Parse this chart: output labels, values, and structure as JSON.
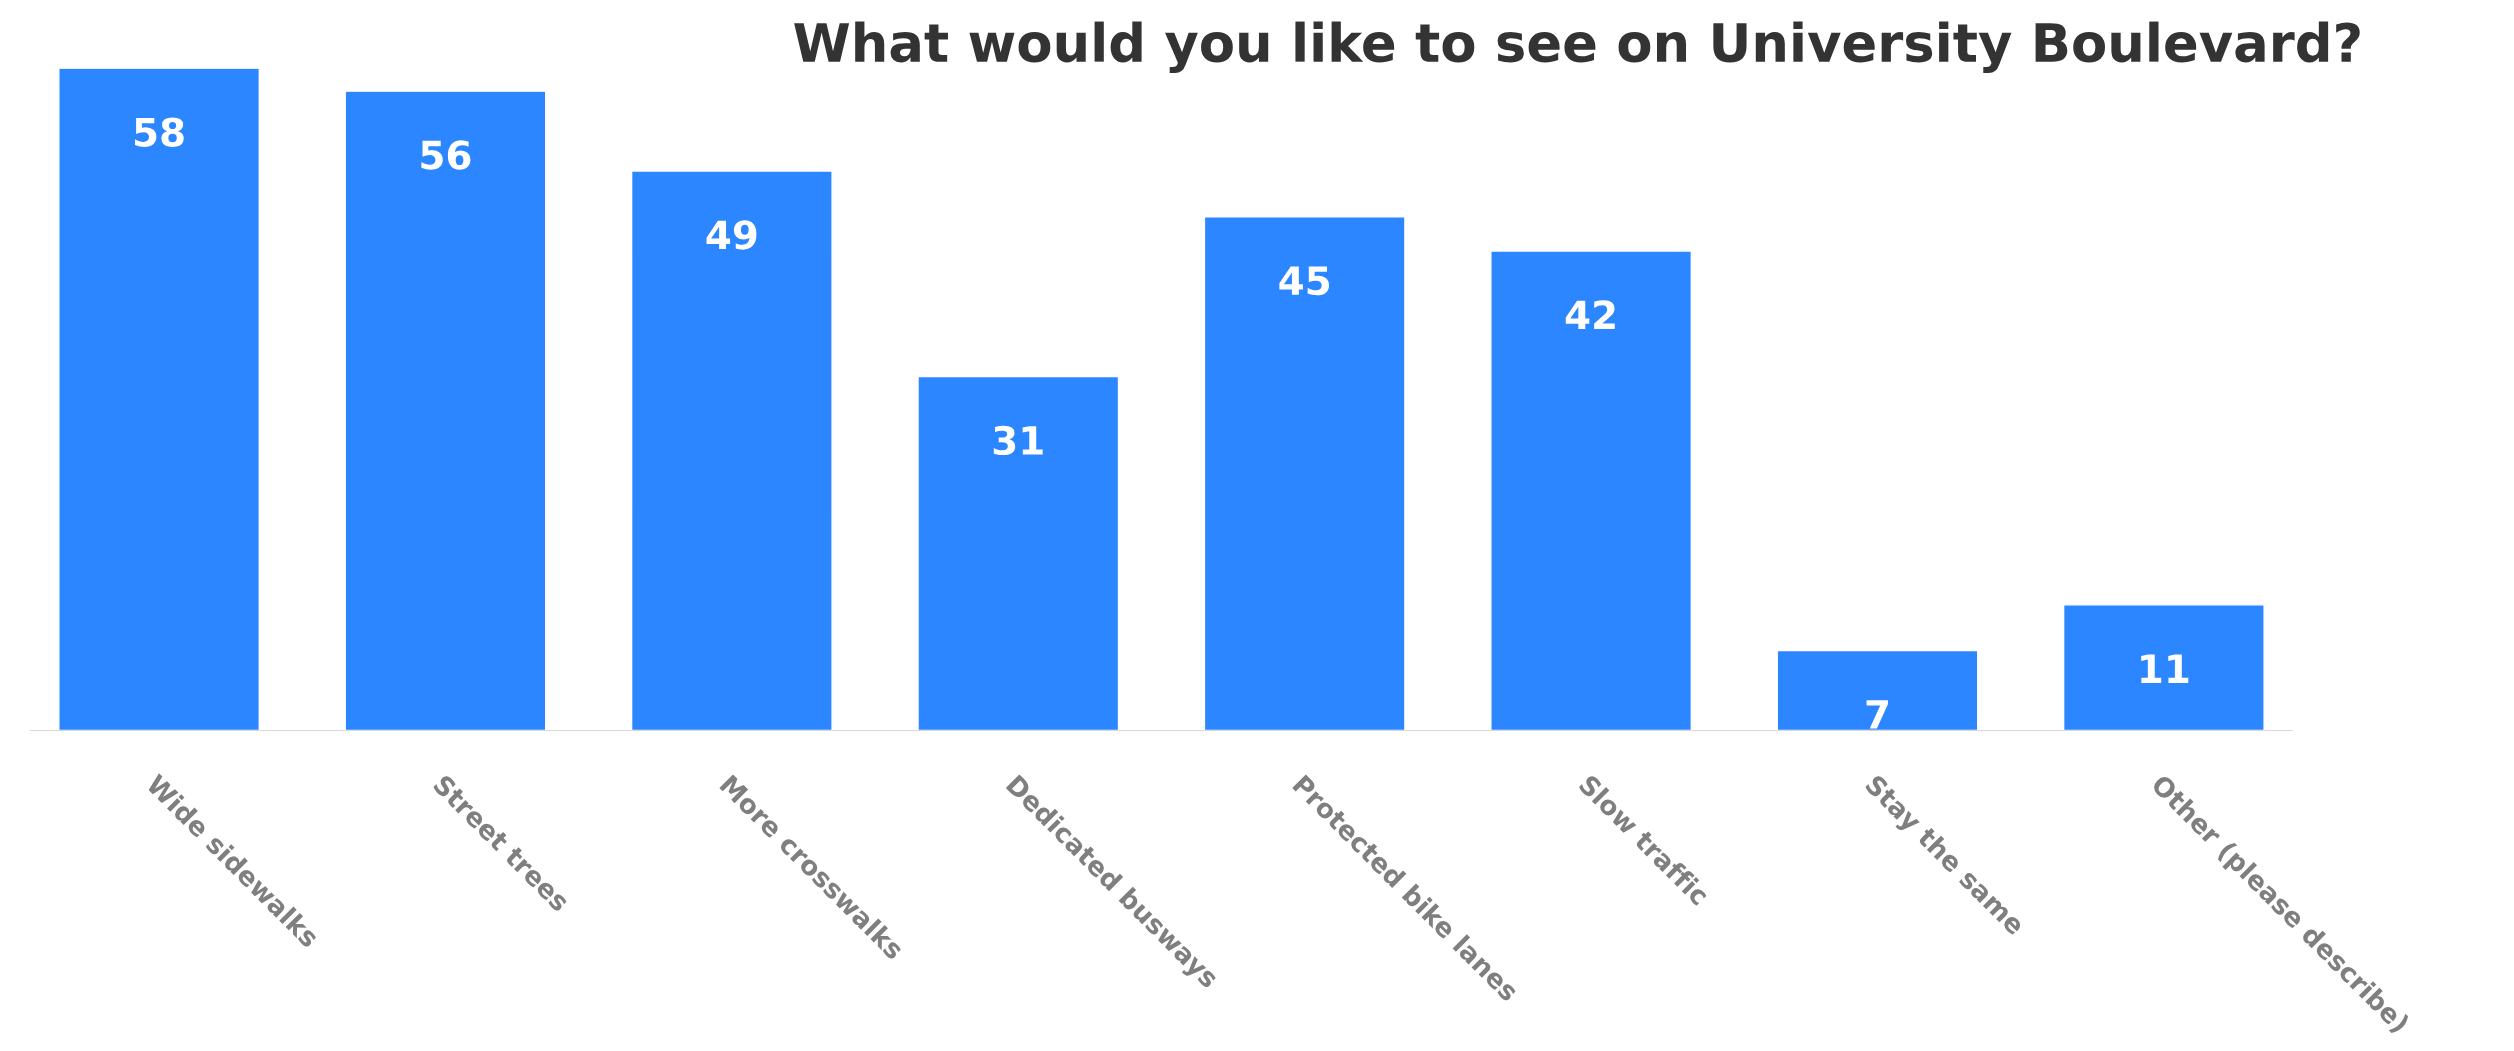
{
  "chart_data": {
    "type": "bar",
    "title": "What would you like to see on University Boulevard?",
    "categories": [
      "Wide sidewalks",
      "Street trees",
      "More crosswalks",
      "Dedicated busways",
      "Protected bike lanes",
      "Slow traffic",
      "Stay the same",
      "Other (please describe)"
    ],
    "values": [
      58,
      56,
      49,
      31,
      45,
      42,
      7,
      11
    ],
    "color": "#2b86ff",
    "data_labels": true,
    "tick_labels": "x"
  }
}
